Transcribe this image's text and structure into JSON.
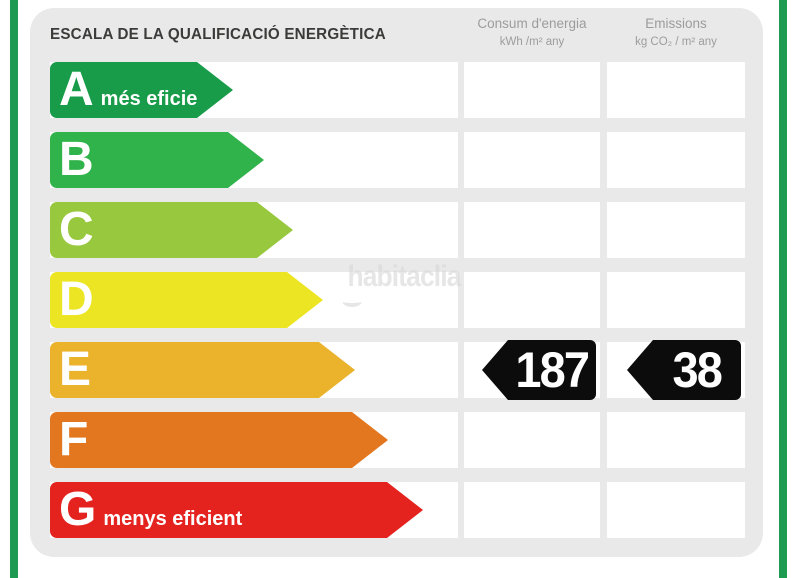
{
  "title": "ESCALA DE LA QUALIFICACIÓ ENERGÈTICA",
  "watermark": "habitaclia",
  "columns": {
    "consum": {
      "line1": "Consum d'energia",
      "line2": "kWh /m²  any"
    },
    "emissions": {
      "line1": "Emissions",
      "line2": "kg CO₂  / m²  any"
    }
  },
  "colors": {
    "stripe": "#1e9b50",
    "panel": "#e9e9e9",
    "value_arrow": "#0c0c0c"
  },
  "scale": {
    "tip_depth": 36,
    "rows": [
      {
        "letter": "A",
        "note": "més eficient",
        "color": "#189c49",
        "arrow_width": 183,
        "consum": null,
        "emissions": null
      },
      {
        "letter": "B",
        "note": "",
        "color": "#2fb34a",
        "arrow_width": 214,
        "consum": null,
        "emissions": null
      },
      {
        "letter": "C",
        "note": "",
        "color": "#98c83d",
        "arrow_width": 243,
        "consum": null,
        "emissions": null
      },
      {
        "letter": "D",
        "note": "",
        "color": "#ebe523",
        "arrow_width": 273,
        "consum": null,
        "emissions": null
      },
      {
        "letter": "E",
        "note": "",
        "color": "#ebb22b",
        "arrow_width": 305,
        "consum": "187",
        "emissions": "38"
      },
      {
        "letter": "F",
        "note": "",
        "color": "#e2771f",
        "arrow_width": 338,
        "consum": null,
        "emissions": null
      },
      {
        "letter": "G",
        "note": "menys eficient",
        "color": "#e4231f",
        "arrow_width": 373,
        "consum": null,
        "emissions": null
      }
    ]
  },
  "chart_data": {
    "type": "bar",
    "title": "ESCALA DE LA QUALIFICACIÓ ENERGÈTICA",
    "categories": [
      "A",
      "B",
      "C",
      "D",
      "E",
      "F",
      "G"
    ],
    "values": [
      183,
      214,
      243,
      273,
      305,
      338,
      373
    ],
    "bar_colors": [
      "#189c49",
      "#2fb34a",
      "#98c83d",
      "#ebe523",
      "#ebb22b",
      "#e2771f",
      "#e4231f"
    ],
    "annotations": [
      "A = més eficient",
      "G = menys eficient"
    ],
    "rating": "E",
    "rating_values": {
      "consum_kwh_m2_any": 187,
      "emissions_kg_co2_m2_any": 38
    },
    "column_headers": [
      "Consum d'energia kWh/m² any",
      "Emissions kg CO₂/m² any"
    ],
    "legend_position": "none",
    "grid": false
  }
}
